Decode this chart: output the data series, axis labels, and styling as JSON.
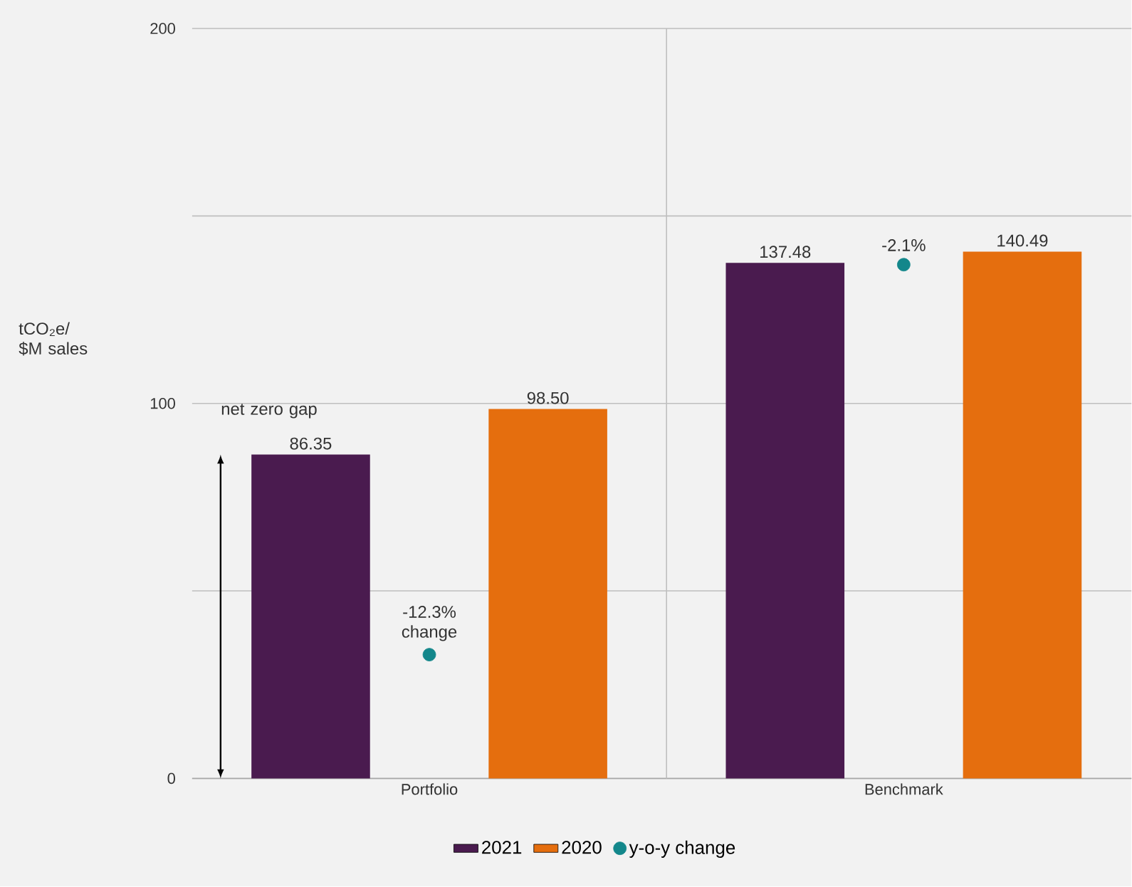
{
  "chart_data": {
    "type": "bar",
    "categories": [
      "Portfolio",
      "Benchmark"
    ],
    "series": [
      {
        "name": "2021",
        "color": "#4a1b4f",
        "values": [
          86.35,
          137.48
        ],
        "value_labels": [
          "86.35",
          "137.48"
        ]
      },
      {
        "name": "2020",
        "color": "#e56e0e",
        "values": [
          98.5,
          140.49
        ],
        "value_labels": [
          "98.50",
          "140.49"
        ]
      },
      {
        "name": "y-o-y change",
        "type": "scatter",
        "color": "#13878b",
        "values": [
          33,
          137
        ]
      }
    ],
    "ylim": [
      0,
      200
    ],
    "yticks": [
      0,
      {
        "value": 50,
        "label": null
      },
      100,
      {
        "value": 150,
        "label": null
      },
      200
    ],
    "grid": "y",
    "legend": "bottom",
    "annotations": [
      "tCO₂e/ $M sales",
      "net zero gap",
      {
        "text": "-12.3% change",
        "x": "Portfolio",
        "y": 33
      },
      {
        "text": "-2.1%",
        "x": "Benchmark",
        "y": 137
      }
    ]
  }
}
